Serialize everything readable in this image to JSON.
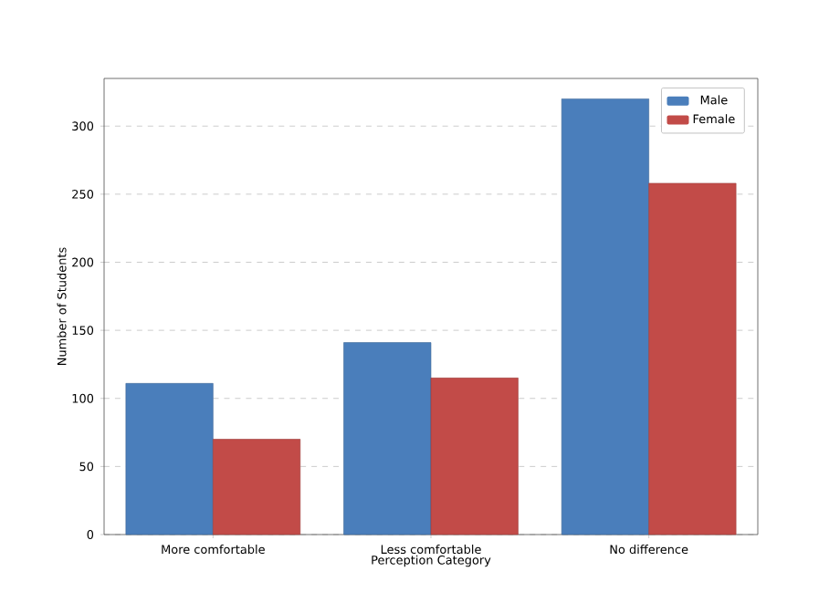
{
  "chart_data": {
    "type": "bar",
    "xlabel": "Perception Category",
    "ylabel": "Number of Students",
    "categories": [
      "More comfortable",
      "Less comfortable",
      "No difference"
    ],
    "series": [
      {
        "name": "Male",
        "color": "#4a7ebb",
        "values": [
          111,
          141,
          320
        ]
      },
      {
        "name": "Female",
        "color": "#c24b48",
        "values": [
          70,
          115,
          258
        ]
      }
    ],
    "ylim": [
      0,
      335
    ],
    "yticks": [
      0,
      50,
      100,
      150,
      200,
      250,
      300
    ],
    "grid": "y",
    "legend": "top right"
  }
}
